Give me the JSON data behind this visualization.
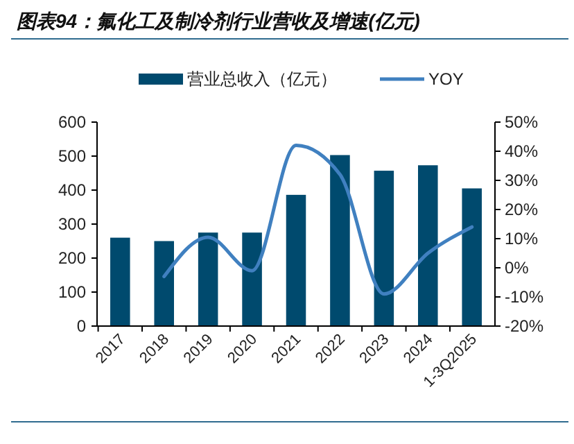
{
  "chart_data": {
    "type": "bar",
    "title": "图表94：氟化工及制冷剂行业营收及增速(亿元)",
    "categories": [
      "2017",
      "2018",
      "2019",
      "2020",
      "2021",
      "2022",
      "2023",
      "2024",
      "1-3Q2025"
    ],
    "series": [
      {
        "name": "营业总收入（亿元）",
        "color": "#004a6e",
        "values": [
          260,
          250,
          275,
          275,
          386,
          503,
          457,
          473,
          405
        ]
      },
      {
        "name": "YOY",
        "type": "line",
        "axis": "y2",
        "color": "#4080c0",
        "values": [
          null,
          -3,
          10.5,
          -1,
          42,
          32,
          -9,
          5,
          14
        ]
      }
    ],
    "ylim": [
      0,
      600
    ],
    "yticks": [
      0,
      100,
      200,
      300,
      400,
      500,
      600
    ],
    "y2lim": [
      -20,
      50
    ],
    "y2ticks": [
      {
        "value": -20,
        "label": "-20%"
      },
      {
        "value": -10,
        "label": "-10%"
      },
      {
        "value": 0,
        "label": "0%"
      },
      {
        "value": 10,
        "label": "10%"
      },
      {
        "value": 20,
        "label": "20%"
      },
      {
        "value": 30,
        "label": "30%"
      },
      {
        "value": 40,
        "label": "40%"
      },
      {
        "value": 50,
        "label": "50%"
      }
    ],
    "grid": false,
    "legend": "top"
  }
}
